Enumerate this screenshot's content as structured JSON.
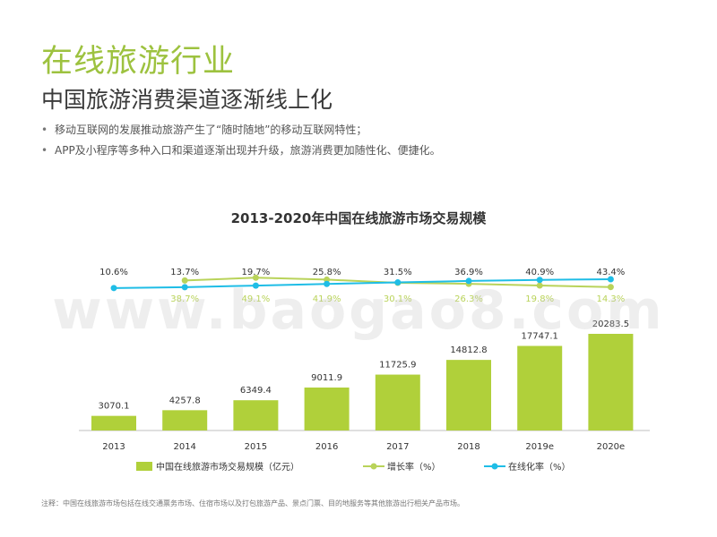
{
  "slide": {
    "title": "在线旅游行业",
    "subtitle": "中国旅游消费渠道逐渐线上化",
    "bullets": [
      "移动互联网的发展推动旅游产生了“随时随地”的移动互联网特性；",
      "APP及小程序等多种入口和渠道逐渐出现并升级，旅游消费更加随性化、便捷化。"
    ],
    "footnote": "注释：中国在线旅游市场包括在线交通票务市场、住宿市场以及打包旅游产品、景点门票、目的地服务等其他旅游出行相关产品市场。",
    "watermark": "www.baogao8.com"
  },
  "colors": {
    "title_green": "#9dc23f",
    "bar": "#b0d03a",
    "growth_line": "#b9d35a",
    "online_line": "#1fbde6"
  },
  "chart_data": {
    "type": "bar",
    "title": "2013-2020年中国在线旅游市场交易规模",
    "categories": [
      "2013",
      "2014",
      "2015",
      "2016",
      "2017",
      "2018",
      "2019e",
      "2020e"
    ],
    "series": [
      {
        "name": "中国在线旅游市场交易规模（亿元）",
        "type": "bar",
        "values": [
          3070.1,
          4257.8,
          6349.4,
          9011.9,
          11725.9,
          14812.8,
          17747.1,
          20283.5
        ],
        "labels": [
          "3070.1",
          "4257.8",
          "6349.4",
          "9011.9",
          "11725.9",
          "14812.8",
          "17747.1",
          "20283.5"
        ]
      },
      {
        "name": "增长率（%）",
        "type": "line",
        "values": [
          null,
          38.7,
          49.1,
          41.9,
          30.1,
          26.3,
          19.8,
          14.3
        ],
        "labels": [
          "",
          "38.7%",
          "49.1%",
          "41.9%",
          "30.1%",
          "26.3%",
          "19.8%",
          "14.3%"
        ]
      },
      {
        "name": "在线化率（%）",
        "type": "line",
        "values": [
          10.6,
          13.7,
          19.7,
          25.8,
          31.5,
          36.9,
          40.9,
          43.4
        ],
        "labels": [
          "10.6%",
          "13.7%",
          "19.7%",
          "25.8%",
          "31.5%",
          "36.9%",
          "40.9%",
          "43.4%"
        ]
      }
    ],
    "grid": false,
    "legend_position": "bottom"
  }
}
